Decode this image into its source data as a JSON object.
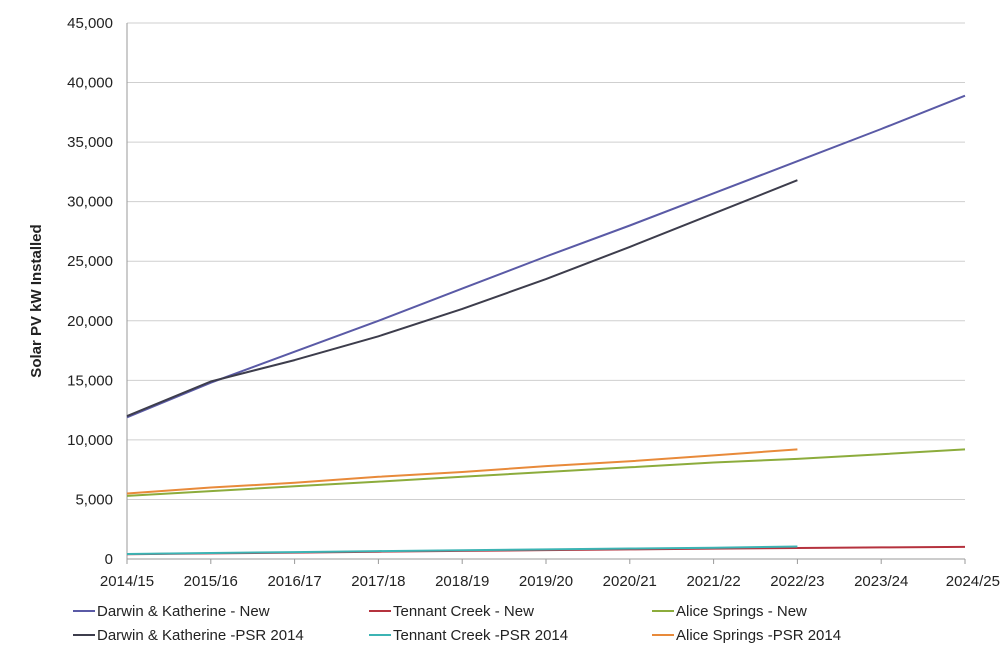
{
  "chart_data": {
    "type": "line",
    "title": "",
    "xlabel": "",
    "ylabel": "Solar PV kW Installed",
    "ylim": [
      0,
      45000
    ],
    "yticks": [
      "0",
      "5,000",
      "10,000",
      "15,000",
      "20,000",
      "25,000",
      "30,000",
      "35,000",
      "40,000",
      "45,000"
    ],
    "ytick_values": [
      0,
      5000,
      10000,
      15000,
      20000,
      25000,
      30000,
      35000,
      40000,
      45000
    ],
    "categories": [
      "2014/15",
      "2015/16",
      "2016/17",
      "2017/18",
      "2018/19",
      "2019/20",
      "2020/21",
      "2021/22",
      "2022/23",
      "2023/24",
      "2024/25"
    ],
    "grid": true,
    "legend_position": "bottom",
    "series": [
      {
        "name": "Darwin & Katherine - New",
        "color": "#5a5aa6",
        "values": [
          11900,
          14800,
          17400,
          20000,
          22700,
          25400,
          28000,
          30700,
          33400,
          36100,
          38900
        ]
      },
      {
        "name": "Tennant Creek  - New",
        "color": "#b5323e",
        "values": [
          400,
          470,
          540,
          610,
          680,
          750,
          810,
          870,
          920,
          970,
          1020
        ]
      },
      {
        "name": "Alice Springs  - New",
        "color": "#8cac3c",
        "values": [
          5300,
          5700,
          6100,
          6500,
          6900,
          7300,
          7700,
          8100,
          8400,
          8800,
          9200
        ]
      },
      {
        "name": "Darwin & Katherine -PSR 2014",
        "color": "#3d3d4c",
        "values": [
          12000,
          14900,
          16700,
          18700,
          21000,
          23500,
          26200,
          29000,
          31800,
          null,
          null
        ]
      },
      {
        "name": "Tennant Creek  -PSR 2014",
        "color": "#3cb4b4",
        "values": [
          420,
          500,
          580,
          660,
          740,
          810,
          880,
          950,
          1050,
          null,
          null
        ]
      },
      {
        "name": "Alice Springs  -PSR 2014",
        "color": "#e88a3a",
        "values": [
          5500,
          6000,
          6400,
          6900,
          7300,
          7800,
          8200,
          8700,
          9200,
          null,
          null
        ]
      }
    ]
  }
}
